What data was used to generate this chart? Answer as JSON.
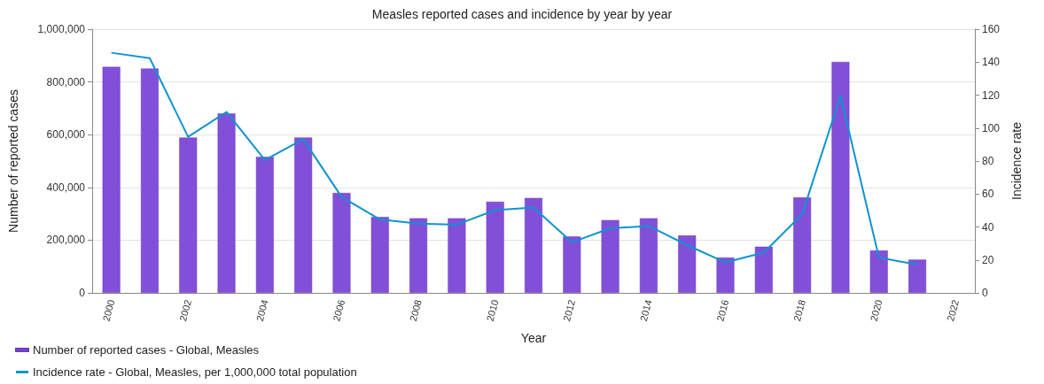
{
  "chart_data": {
    "type": "bar",
    "title": "Measles reported cases and incidence by year by year",
    "xlabel": "Year",
    "ylabel": "Number of reported cases",
    "y2label": "Incidence rate",
    "categories": [
      "2000",
      null,
      "2002",
      null,
      "2004",
      null,
      "2006",
      null,
      "2008",
      null,
      "2010",
      null,
      "2012",
      null,
      "2014",
      null,
      "2016",
      null,
      "2018",
      null,
      "2020",
      null,
      "2022"
    ],
    "series": [
      {
        "name": "Number of reported cases - Global, Measles",
        "color": "#8250d8",
        "values": [
          857000,
          851000,
          589000,
          680000,
          516000,
          589000,
          379000,
          288000,
          283000,
          283000,
          346000,
          360000,
          214000,
          276000,
          283000,
          218000,
          134000,
          175000,
          362000,
          876000,
          161000,
          126000,
          null
        ]
      },
      {
        "name": "Incidence rate - Global, Measles, per 1,000,000 total population",
        "type": "line",
        "axis": "y2",
        "color": "#0e94d0",
        "values": [
          145.7,
          142.4,
          94.7,
          109.8,
          80.6,
          93.2,
          58.2,
          44.5,
          42,
          41.4,
          50.2,
          51.8,
          30.7,
          39.2,
          40.6,
          29,
          18.5,
          24.4,
          47.7,
          119.6,
          21.5,
          17.1,
          null
        ]
      }
    ],
    "ylim": [
      0,
      1000000
    ],
    "yticks": [
      0,
      {
        "value": 200000,
        "label": "200,000"
      },
      {
        "value": 400000,
        "label": "400,000"
      },
      {
        "value": 600000,
        "label": "600,000"
      },
      {
        "value": 800000,
        "label": "800,000"
      },
      {
        "value": 1000000,
        "label": "1,000,000"
      }
    ],
    "y2lim": [
      0,
      160
    ],
    "y2ticks": [
      0,
      20,
      40,
      60,
      80,
      100,
      120,
      140,
      160
    ],
    "grid": "y",
    "legend": "bottom left",
    "marker": "none",
    "line_style": "solid"
  }
}
